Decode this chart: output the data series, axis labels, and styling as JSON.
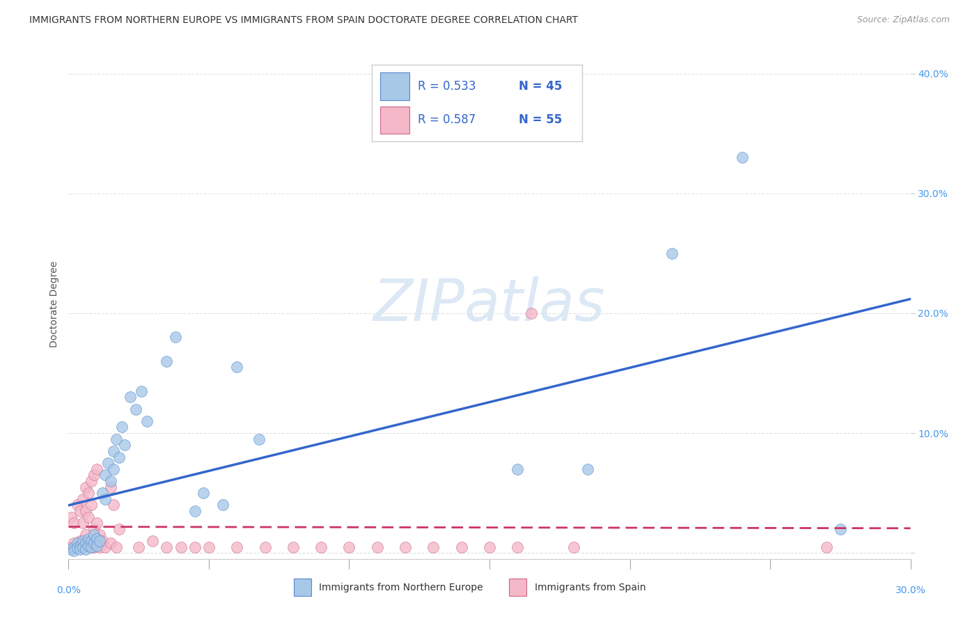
{
  "title": "IMMIGRANTS FROM NORTHERN EUROPE VS IMMIGRANTS FROM SPAIN DOCTORATE DEGREE CORRELATION CHART",
  "source": "Source: ZipAtlas.com",
  "ylabel": "Doctorate Degree",
  "xlim": [
    0.0,
    0.3
  ],
  "ylim": [
    -0.005,
    0.42
  ],
  "yticks": [
    0.0,
    0.1,
    0.2,
    0.3,
    0.4
  ],
  "ytick_labels": [
    "",
    "10.0%",
    "20.0%",
    "30.0%",
    "40.0%"
  ],
  "xticks": [
    0.0,
    0.05,
    0.1,
    0.15,
    0.2,
    0.25,
    0.3
  ],
  "blue_color": "#a8c8e8",
  "blue_edge_color": "#5588cc",
  "pink_color": "#f4b8c8",
  "pink_edge_color": "#cc6688",
  "blue_line_color": "#3366cc",
  "pink_line_color": "#cc3366",
  "legend_blue_color": "#a8c8e8",
  "legend_pink_color": "#f4b8c8",
  "legend_text_color": "#3366cc",
  "legend_border_color": "#cccccc",
  "tick_color": "#4499ee",
  "ylabel_color": "#555555",
  "title_color": "#333333",
  "source_color": "#999999",
  "watermark_color": "#dde8f5",
  "grid_color": "#dddddd",
  "blue_scatter": [
    [
      0.001,
      0.003
    ],
    [
      0.002,
      0.005
    ],
    [
      0.002,
      0.002
    ],
    [
      0.003,
      0.008
    ],
    [
      0.003,
      0.004
    ],
    [
      0.004,
      0.006
    ],
    [
      0.004,
      0.003
    ],
    [
      0.005,
      0.01
    ],
    [
      0.005,
      0.005
    ],
    [
      0.006,
      0.008
    ],
    [
      0.006,
      0.003
    ],
    [
      0.007,
      0.012
    ],
    [
      0.007,
      0.006
    ],
    [
      0.008,
      0.01
    ],
    [
      0.008,
      0.005
    ],
    [
      0.009,
      0.008
    ],
    [
      0.009,
      0.015
    ],
    [
      0.01,
      0.012
    ],
    [
      0.01,
      0.006
    ],
    [
      0.011,
      0.01
    ],
    [
      0.012,
      0.05
    ],
    [
      0.013,
      0.065
    ],
    [
      0.013,
      0.045
    ],
    [
      0.014,
      0.075
    ],
    [
      0.015,
      0.06
    ],
    [
      0.016,
      0.085
    ],
    [
      0.016,
      0.07
    ],
    [
      0.017,
      0.095
    ],
    [
      0.018,
      0.08
    ],
    [
      0.019,
      0.105
    ],
    [
      0.02,
      0.09
    ],
    [
      0.022,
      0.13
    ],
    [
      0.024,
      0.12
    ],
    [
      0.026,
      0.135
    ],
    [
      0.028,
      0.11
    ],
    [
      0.035,
      0.16
    ],
    [
      0.038,
      0.18
    ],
    [
      0.045,
      0.035
    ],
    [
      0.048,
      0.05
    ],
    [
      0.055,
      0.04
    ],
    [
      0.06,
      0.155
    ],
    [
      0.068,
      0.095
    ],
    [
      0.16,
      0.07
    ],
    [
      0.185,
      0.07
    ],
    [
      0.215,
      0.25
    ],
    [
      0.24,
      0.33
    ],
    [
      0.275,
      0.02
    ]
  ],
  "pink_scatter": [
    [
      0.001,
      0.005
    ],
    [
      0.001,
      0.03
    ],
    [
      0.002,
      0.008
    ],
    [
      0.002,
      0.025
    ],
    [
      0.003,
      0.005
    ],
    [
      0.003,
      0.04
    ],
    [
      0.004,
      0.01
    ],
    [
      0.004,
      0.035
    ],
    [
      0.005,
      0.008
    ],
    [
      0.005,
      0.045
    ],
    [
      0.005,
      0.025
    ],
    [
      0.006,
      0.055
    ],
    [
      0.006,
      0.015
    ],
    [
      0.006,
      0.035
    ],
    [
      0.007,
      0.05
    ],
    [
      0.007,
      0.01
    ],
    [
      0.007,
      0.03
    ],
    [
      0.008,
      0.06
    ],
    [
      0.008,
      0.005
    ],
    [
      0.008,
      0.04
    ],
    [
      0.009,
      0.065
    ],
    [
      0.009,
      0.02
    ],
    [
      0.009,
      0.005
    ],
    [
      0.01,
      0.07
    ],
    [
      0.01,
      0.025
    ],
    [
      0.01,
      0.008
    ],
    [
      0.011,
      0.005
    ],
    [
      0.011,
      0.015
    ],
    [
      0.012,
      0.01
    ],
    [
      0.013,
      0.005
    ],
    [
      0.015,
      0.008
    ],
    [
      0.015,
      0.055
    ],
    [
      0.016,
      0.04
    ],
    [
      0.017,
      0.005
    ],
    [
      0.018,
      0.02
    ],
    [
      0.025,
      0.005
    ],
    [
      0.03,
      0.01
    ],
    [
      0.035,
      0.005
    ],
    [
      0.04,
      0.005
    ],
    [
      0.045,
      0.005
    ],
    [
      0.05,
      0.005
    ],
    [
      0.06,
      0.005
    ],
    [
      0.07,
      0.005
    ],
    [
      0.08,
      0.005
    ],
    [
      0.09,
      0.005
    ],
    [
      0.1,
      0.005
    ],
    [
      0.11,
      0.005
    ],
    [
      0.12,
      0.005
    ],
    [
      0.13,
      0.005
    ],
    [
      0.14,
      0.005
    ],
    [
      0.15,
      0.005
    ],
    [
      0.16,
      0.005
    ],
    [
      0.165,
      0.2
    ],
    [
      0.18,
      0.005
    ],
    [
      0.27,
      0.005
    ]
  ],
  "watermark": "ZIPatlas",
  "title_fontsize": 10,
  "source_fontsize": 9,
  "axis_label_fontsize": 10,
  "tick_fontsize": 10,
  "legend_fontsize": 12,
  "watermark_fontsize": 60
}
